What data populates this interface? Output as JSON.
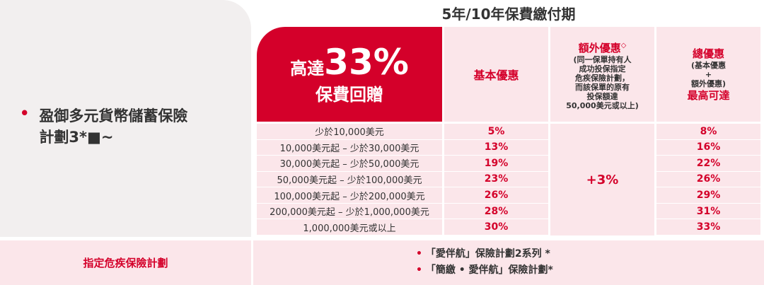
{
  "title": "5年/10年保費繳付期",
  "plan": "盈御多元貨幣儲蓄保險計劃3*■~",
  "header": {
    "highlight_prefix": "高達",
    "highlight_value": "33%",
    "highlight_caption": "保費回贈",
    "basic": "基本優惠",
    "extra_title": "額外優惠",
    "extra_mark": "◇",
    "extra_note": [
      "(同一保單持有人",
      "成功投保指定",
      "危疾保險計劃，",
      "而該保單的原有",
      "投保額達",
      "50,000美元或以上)"
    ],
    "total_title": "總優惠",
    "total_note": [
      "(基本優惠",
      "+",
      "額外優惠)"
    ],
    "total_caption": "最高可達"
  },
  "table": {
    "rows": [
      [
        "少於10,000美元",
        "5%",
        "8%"
      ],
      [
        "10,000美元起 – 少於30,000美元",
        "13%",
        "16%"
      ],
      [
        "30,000美元起 – 少於50,000美元",
        "19%",
        "22%"
      ],
      [
        "50,000美元起 – 少於100,000美元",
        "23%",
        "26%"
      ],
      [
        "100,000美元起 – 少於200,000美元",
        "26%",
        "29%"
      ],
      [
        "200,000美元起 – 少於1,000,000美元",
        "28%",
        "31%"
      ],
      [
        "1,000,000美元或以上",
        "30%",
        "33%"
      ]
    ]
  },
  "extra_value": "+3%",
  "footer": {
    "label": "指定危疾保險計劃",
    "items": [
      "「愛伴航」保險計劃2系列 *",
      "「簡繳 • 愛伴航」保險計劃*"
    ]
  }
}
